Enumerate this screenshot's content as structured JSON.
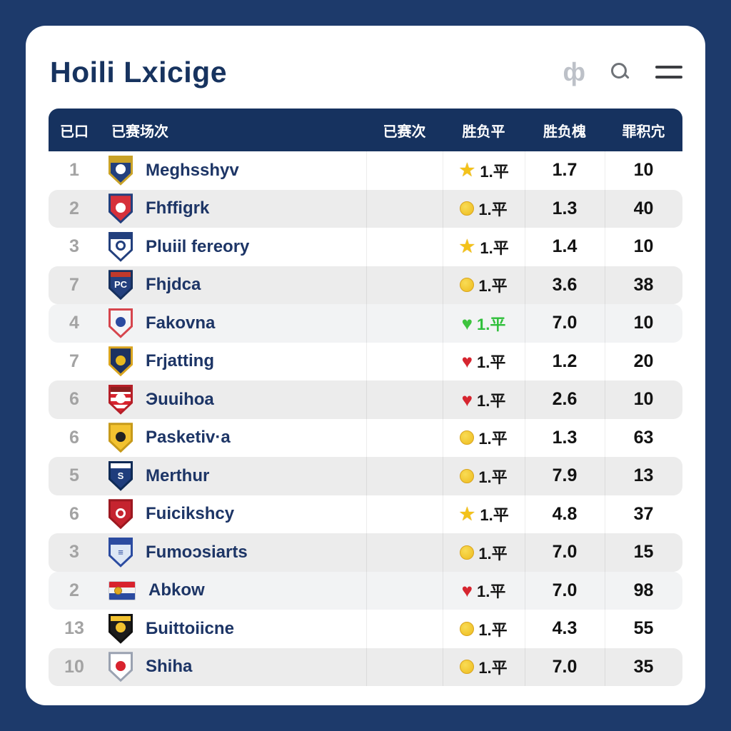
{
  "colors": {
    "page_bg": "#1d3a6b",
    "card_bg": "#ffffff",
    "header_bg": "#16325f",
    "title_color": "#17335f",
    "team_name_color": "#1d3566",
    "rank_color": "#a3a3a3",
    "stripe_gray": "#ececec",
    "stripe_gray_light": "#f2f3f4",
    "green_result": "#2fbf3a",
    "red_heart": "#d6252f",
    "gold": "#f3c21a"
  },
  "header": {
    "title": "Hoili Lxicige",
    "icons": [
      {
        "name": "language-icon",
        "glyph": "ф"
      },
      {
        "name": "search-icon"
      },
      {
        "name": "menu-icon"
      }
    ]
  },
  "table": {
    "columns": [
      {
        "key": "rank",
        "label": "已口"
      },
      {
        "key": "team",
        "label": "已赛场次"
      },
      {
        "key": "played",
        "label": "已赛次"
      },
      {
        "key": "result",
        "label": "胜负平"
      },
      {
        "key": "ratio",
        "label": "胜负槐"
      },
      {
        "key": "points",
        "label": "罪积宂"
      }
    ],
    "rows": [
      {
        "rank": "1",
        "team": "Meghsshyv",
        "played": "",
        "icon": "star",
        "result": "1.平",
        "result_color": "",
        "ratio": "1.7",
        "points": "10",
        "shade": "white",
        "badge": {
          "variant": "shield",
          "border": "#c9a227",
          "base": "#223f7d",
          "band": "#c9a227",
          "emblem": "#ffffff"
        }
      },
      {
        "rank": "2",
        "team": "Fhffigrk",
        "played": "",
        "icon": "coin",
        "result": "1.平",
        "result_color": "",
        "ratio": "1.3",
        "points": "40",
        "shade": "gray",
        "badge": {
          "variant": "shield",
          "border": "#223f7d",
          "base": "#d6303a",
          "emblem": "#ffffff"
        }
      },
      {
        "rank": "3",
        "team": "Pluiil fereory",
        "played": "",
        "icon": "star",
        "result": "1.平",
        "result_color": "",
        "ratio": "1.4",
        "points": "10",
        "shade": "white",
        "badge": {
          "variant": "shield",
          "border": "#223f7d",
          "base": "#ffffff",
          "band": "#223f7d",
          "emblem": "#223f7d",
          "ring": true
        }
      },
      {
        "rank": "7",
        "team": "Fhjdca",
        "played": "",
        "icon": "coin",
        "result": "1.平",
        "result_color": "",
        "ratio": "3.6",
        "points": "38",
        "shade": "gray",
        "badge": {
          "variant": "shield",
          "border": "#16305e",
          "base": "#24407e",
          "band": "#c0392b",
          "text": "PC",
          "textColor": "#ffffff"
        }
      },
      {
        "rank": "4",
        "team": "Fakovna",
        "played": "",
        "icon": "heart-green",
        "result": "1.平",
        "result_color": "#2fbf3a",
        "ratio": "7.0",
        "points": "10",
        "shade": "gray-light",
        "badge": {
          "variant": "shield",
          "border": "#d6454d",
          "base": "#f4f5f7",
          "emblem": "#2b4ba0"
        }
      },
      {
        "rank": "7",
        "team": "Frjatting",
        "played": "",
        "icon": "heart-red",
        "result": "1.平",
        "result_color": "",
        "ratio": "1.2",
        "points": "20",
        "shade": "white",
        "badge": {
          "variant": "shield",
          "border": "#d9a41e",
          "base": "#1c3161",
          "emblem": "#e8b91f"
        }
      },
      {
        "rank": "6",
        "team": "Эuuihoa",
        "played": "",
        "icon": "heart-red",
        "result": "1.平",
        "result_color": "",
        "ratio": "2.6",
        "points": "10",
        "shade": "gray",
        "badge": {
          "variant": "stripes",
          "border": "#b51f28",
          "stripes": [
            "#d8232e",
            "#ffffff"
          ],
          "band": "#8c1f1f",
          "emblem": "#ffffff"
        }
      },
      {
        "rank": "6",
        "team": "Pasketiv·a",
        "played": "",
        "icon": "coin",
        "result": "1.平",
        "result_color": "",
        "ratio": "1.3",
        "points": "63",
        "shade": "white",
        "badge": {
          "variant": "shield",
          "border": "#c79a1a",
          "base": "#f2c230",
          "emblem": "#222222"
        }
      },
      {
        "rank": "5",
        "team": "Merthur",
        "played": "",
        "icon": "coin",
        "result": "1.平",
        "result_color": "",
        "ratio": "7.9",
        "points": "13",
        "shade": "gray",
        "badge": {
          "variant": "shield",
          "border": "#0e2a55",
          "base": "#1f3d7c",
          "band": "#ffffff",
          "text": "S",
          "textColor": "#ffffff"
        }
      },
      {
        "rank": "6",
        "team": "Fuicikshcy",
        "played": "",
        "icon": "star",
        "result": "1.平",
        "result_color": "",
        "ratio": "4.8",
        "points": "37",
        "shade": "white",
        "badge": {
          "variant": "shield",
          "border": "#9c1820",
          "base": "#c5242f",
          "emblem": "#ffffff",
          "ring": true
        }
      },
      {
        "rank": "3",
        "team": "Fumoɔsiarts",
        "played": "",
        "icon": "coin",
        "result": "1.平",
        "result_color": "",
        "ratio": "7.0",
        "points": "15",
        "shade": "gray",
        "badge": {
          "variant": "shield",
          "border": "#2b4ba0",
          "base": "#dde7f5",
          "band": "#2b4ba0",
          "text": "≡",
          "textColor": "#2b4ba0"
        }
      },
      {
        "rank": "2",
        "team": "Abkow",
        "played": "",
        "icon": "heart-red",
        "result": "1.平",
        "result_color": "",
        "ratio": "7.0",
        "points": "98",
        "shade": "gray-light",
        "badge": {
          "variant": "flag",
          "stripes": [
            "#d8232e",
            "#f2f2f2",
            "#2b4ba0"
          ],
          "border": "#c9ccd4",
          "emblem": "#e0a820"
        }
      },
      {
        "rank": "13",
        "team": "Бuittoiicne",
        "played": "",
        "icon": "coin",
        "result": "1.平",
        "result_color": "",
        "ratio": "4.3",
        "points": "55",
        "shade": "white",
        "badge": {
          "variant": "shield",
          "border": "#111111",
          "base": "#1c1c1c",
          "band": "#f2c230",
          "emblem": "#f2c230"
        }
      },
      {
        "rank": "10",
        "team": "Shiha",
        "played": "",
        "icon": "coin",
        "result": "1.平",
        "result_color": "",
        "ratio": "7.0",
        "points": "35",
        "shade": "gray",
        "badge": {
          "variant": "shield",
          "border": "#9aa2b1",
          "base": "#ffffff",
          "emblem": "#d8232e"
        }
      }
    ]
  }
}
